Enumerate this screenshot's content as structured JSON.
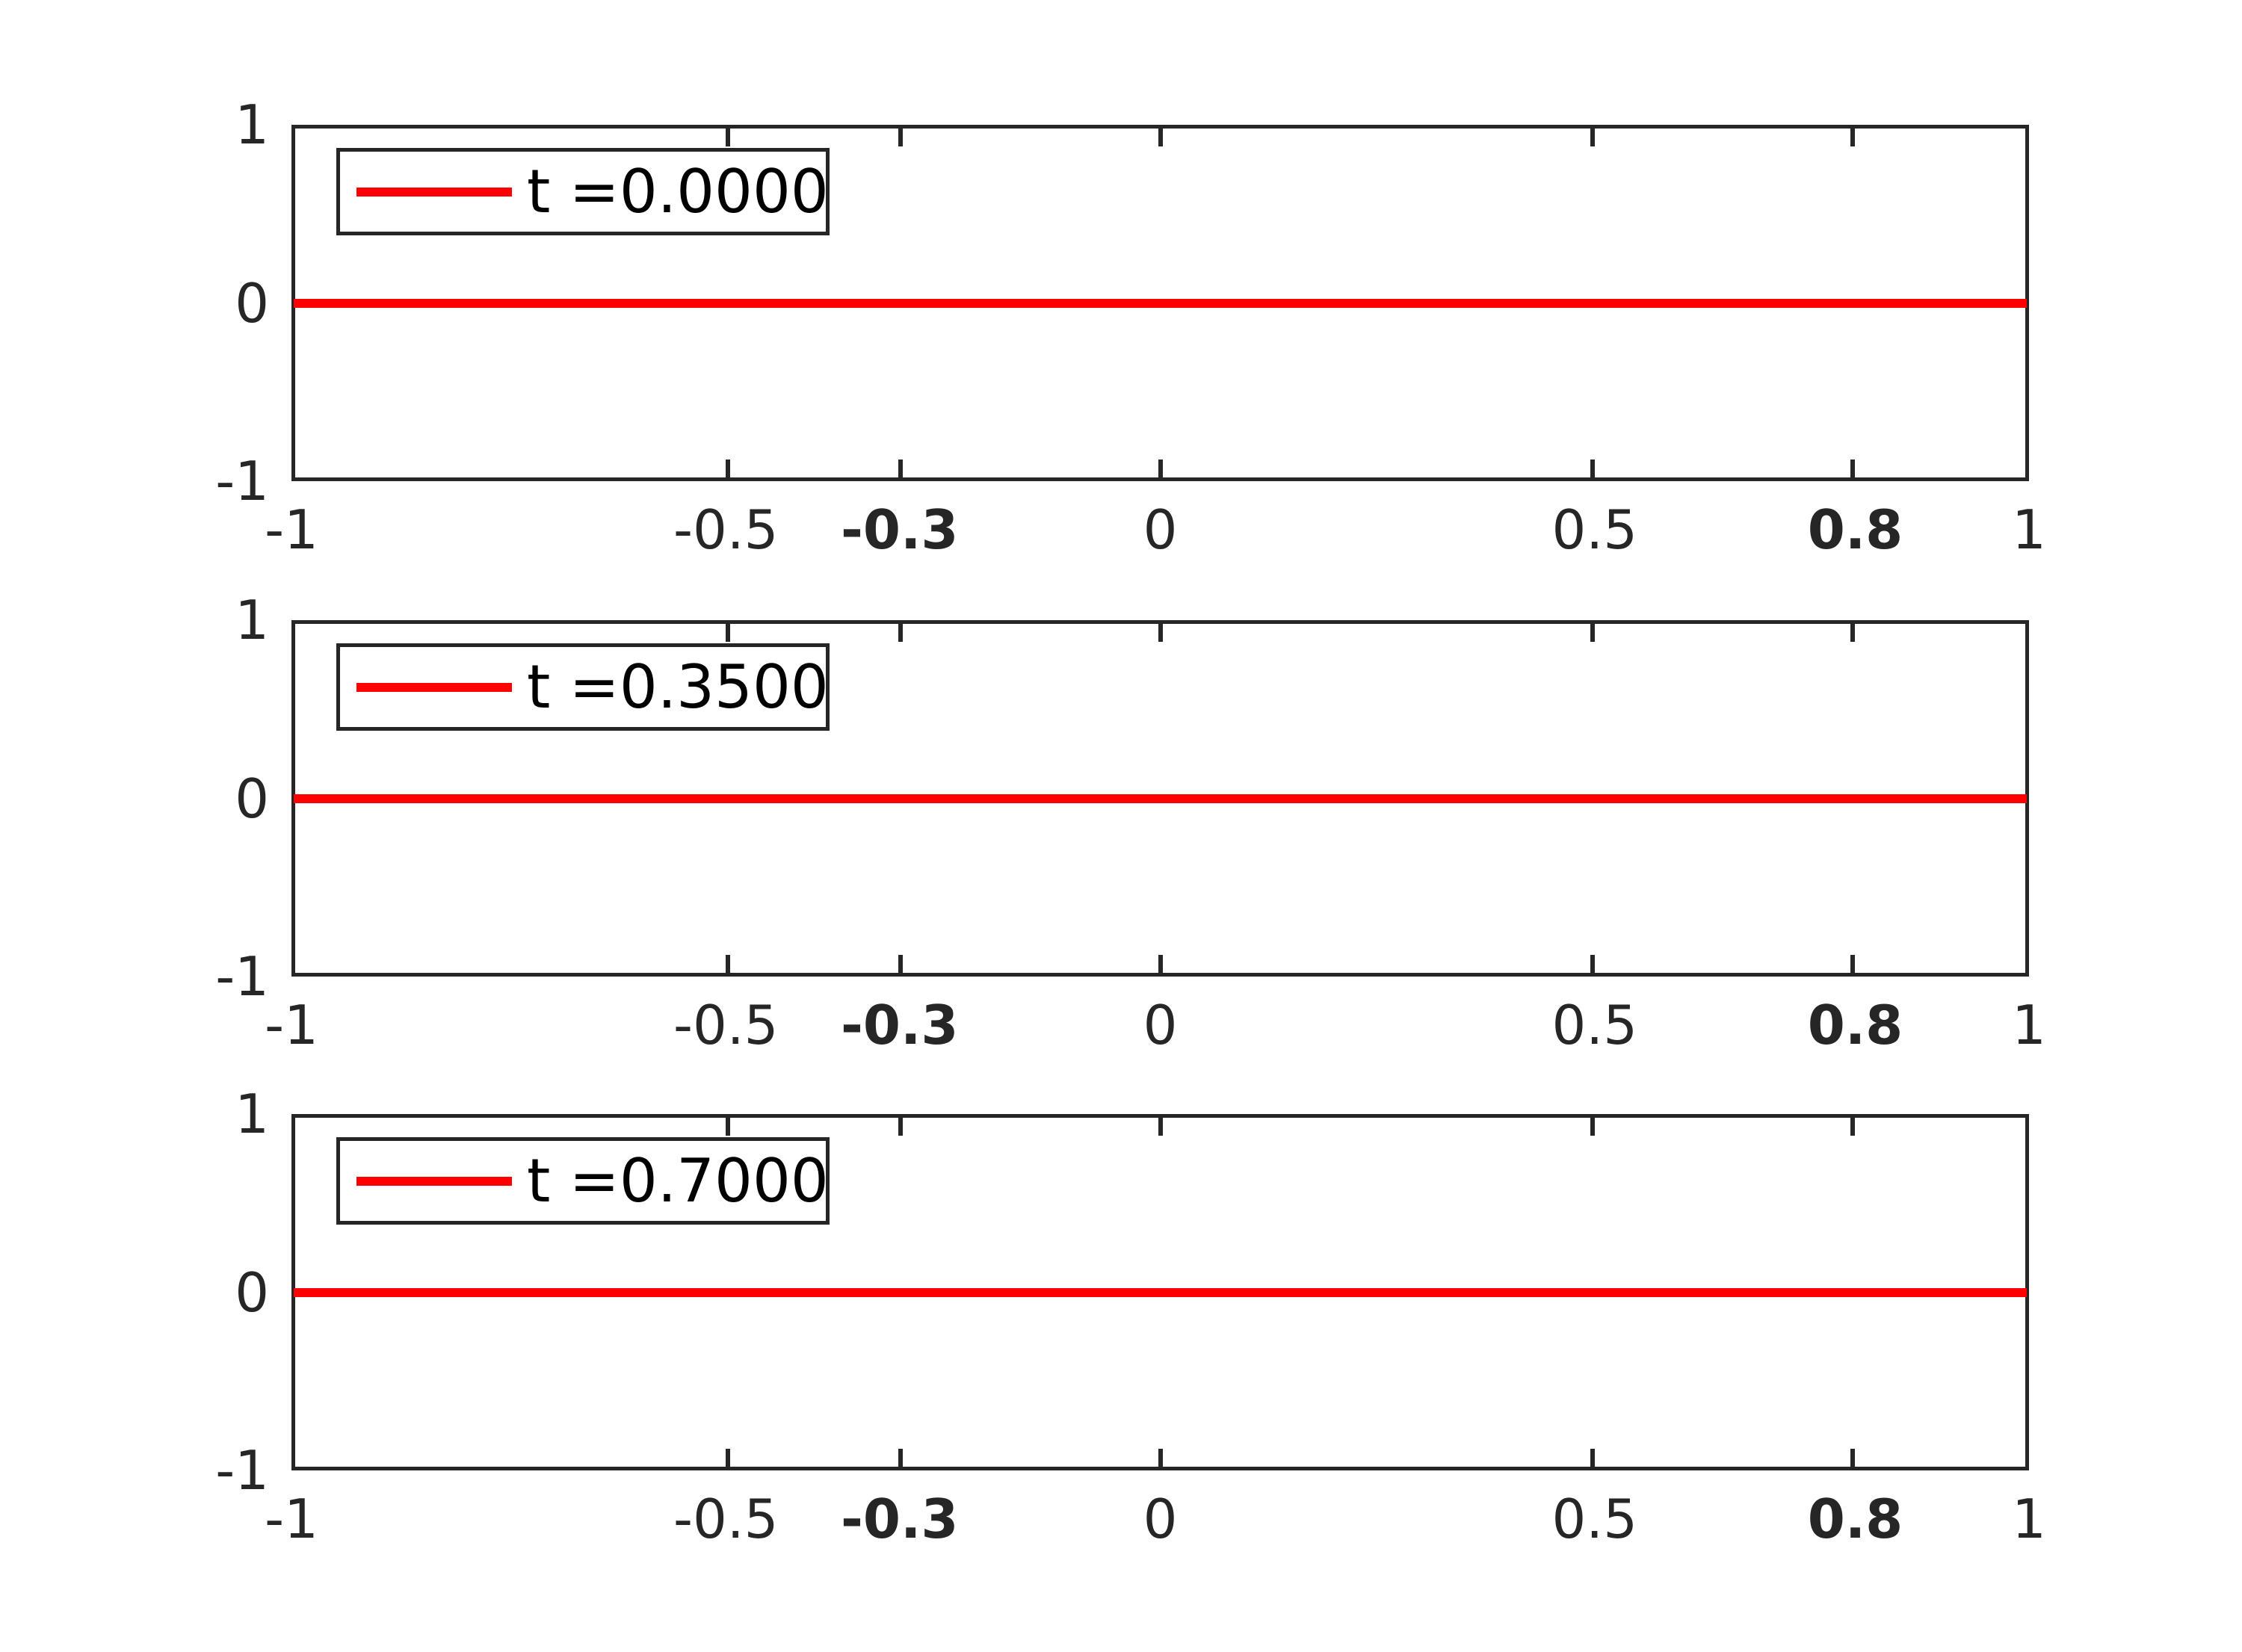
{
  "figure": {
    "background": "#ffffff",
    "axes_color": "#262626",
    "line_color": "#ff0000",
    "legend_text_color": "#000000"
  },
  "chart_data": [
    {
      "type": "line",
      "title": "",
      "xlabel": "",
      "ylabel": "",
      "grid": false,
      "legend_position": "northwest",
      "legend": "t =0.0000",
      "xlim": [
        -1,
        1
      ],
      "ylim": [
        -1,
        1
      ],
      "xticks": [
        {
          "value": -1,
          "label": "-1",
          "bold": false
        },
        {
          "value": -0.5,
          "label": "-0.5",
          "bold": false
        },
        {
          "value": -0.3,
          "label": "-0.3",
          "bold": true
        },
        {
          "value": 0,
          "label": "0",
          "bold": false
        },
        {
          "value": 0.5,
          "label": "0.5",
          "bold": false
        },
        {
          "value": 0.8,
          "label": "0.8",
          "bold": true
        },
        {
          "value": 1,
          "label": "1",
          "bold": false
        }
      ],
      "yticks": [
        {
          "value": 1,
          "label": "1"
        },
        {
          "value": 0,
          "label": "0"
        },
        {
          "value": -1,
          "label": "-1"
        }
      ],
      "series": [
        {
          "name": "t =0.0000",
          "color": "#ff0000",
          "x": [
            -1,
            1
          ],
          "y": [
            0,
            0
          ]
        }
      ]
    },
    {
      "type": "line",
      "title": "",
      "xlabel": "",
      "ylabel": "",
      "grid": false,
      "legend_position": "northwest",
      "legend": "t =0.3500",
      "xlim": [
        -1,
        1
      ],
      "ylim": [
        -1,
        1
      ],
      "xticks": [
        {
          "value": -1,
          "label": "-1",
          "bold": false
        },
        {
          "value": -0.5,
          "label": "-0.5",
          "bold": false
        },
        {
          "value": -0.3,
          "label": "-0.3",
          "bold": true
        },
        {
          "value": 0,
          "label": "0",
          "bold": false
        },
        {
          "value": 0.5,
          "label": "0.5",
          "bold": false
        },
        {
          "value": 0.8,
          "label": "0.8",
          "bold": true
        },
        {
          "value": 1,
          "label": "1",
          "bold": false
        }
      ],
      "yticks": [
        {
          "value": 1,
          "label": "1"
        },
        {
          "value": 0,
          "label": "0"
        },
        {
          "value": -1,
          "label": "-1"
        }
      ],
      "series": [
        {
          "name": "t =0.3500",
          "color": "#ff0000",
          "x": [
            -1,
            1
          ],
          "y": [
            0,
            0
          ]
        }
      ]
    },
    {
      "type": "line",
      "title": "",
      "xlabel": "",
      "ylabel": "",
      "grid": false,
      "legend_position": "northwest",
      "legend": "t =0.7000",
      "xlim": [
        -1,
        1
      ],
      "ylim": [
        -1,
        1
      ],
      "xticks": [
        {
          "value": -1,
          "label": "-1",
          "bold": false
        },
        {
          "value": -0.5,
          "label": "-0.5",
          "bold": false
        },
        {
          "value": -0.3,
          "label": "-0.3",
          "bold": true
        },
        {
          "value": 0,
          "label": "0",
          "bold": false
        },
        {
          "value": 0.5,
          "label": "0.5",
          "bold": false
        },
        {
          "value": 0.8,
          "label": "0.8",
          "bold": true
        },
        {
          "value": 1,
          "label": "1",
          "bold": false
        }
      ],
      "yticks": [
        {
          "value": 1,
          "label": "1"
        },
        {
          "value": 0,
          "label": "0"
        },
        {
          "value": -1,
          "label": "-1"
        }
      ],
      "series": [
        {
          "name": "t =0.7000",
          "color": "#ff0000",
          "x": [
            -1,
            1
          ],
          "y": [
            0,
            0
          ]
        }
      ]
    }
  ]
}
